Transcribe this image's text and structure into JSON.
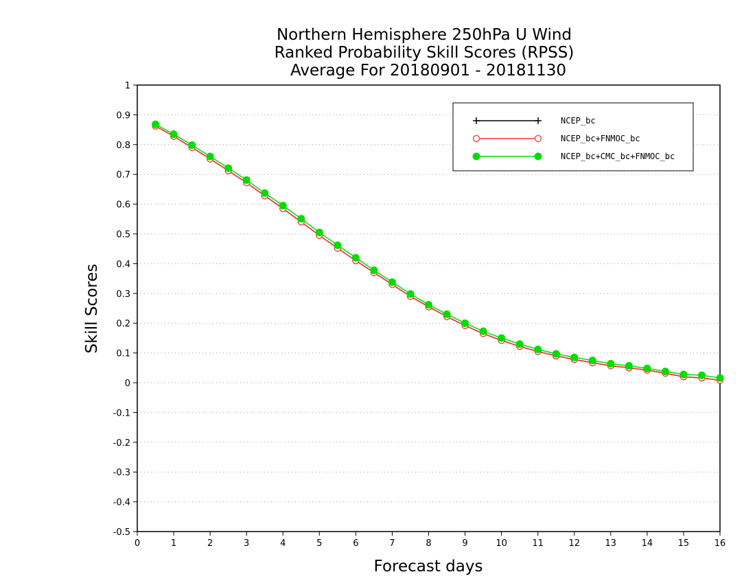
{
  "chart_data": {
    "type": "line",
    "title": [
      "Northern Hemisphere 250hPa U Wind",
      "Ranked Probability Skill Scores (RPSS)",
      "Average For 20180901 - 20181130"
    ],
    "xlabel": "Forecast days",
    "ylabel": "Skill Scores",
    "xlim": [
      0,
      16
    ],
    "ylim": [
      -0.5,
      1
    ],
    "x_ticks": [
      "0",
      "1",
      "2",
      "3",
      "4",
      "5",
      "6",
      "7",
      "8",
      "9",
      "10",
      "11",
      "12",
      "13",
      "14",
      "15",
      "16"
    ],
    "y_ticks": [
      "1",
      "0.9",
      "0.8",
      "0.7",
      "0.6",
      "0.5",
      "0.4",
      "0.3",
      "0.2",
      "0.1",
      "0",
      "-0.1",
      "-0.2",
      "-0.3",
      "-0.4",
      "-0.5"
    ],
    "grid": "horizontal dotted",
    "legend_position": "top-right",
    "x": [
      0.5,
      1,
      1.5,
      2,
      2.5,
      3,
      3.5,
      4,
      4.5,
      5,
      5.5,
      6,
      6.5,
      7,
      7.5,
      8,
      8.5,
      9,
      9.5,
      10,
      10.5,
      11,
      11.5,
      12,
      12.5,
      13,
      13.5,
      14,
      14.5,
      15,
      15.5,
      16
    ],
    "series": [
      {
        "name": "NCEP_bc",
        "color": "#000000",
        "marker": "plus",
        "values": [
          0.862,
          0.828,
          0.79,
          0.752,
          0.712,
          0.672,
          0.628,
          0.585,
          0.54,
          0.495,
          0.452,
          0.41,
          0.37,
          0.33,
          0.29,
          0.255,
          0.222,
          0.192,
          0.165,
          0.142,
          0.122,
          0.105,
          0.09,
          0.078,
          0.067,
          0.057,
          0.05,
          0.042,
          0.032,
          0.02,
          0.016,
          0.008
        ]
      },
      {
        "name": "NCEP_bc+FNMOC_bc",
        "color": "#ff3333",
        "marker": "open-circle",
        "values": [
          0.862,
          0.828,
          0.79,
          0.752,
          0.712,
          0.672,
          0.628,
          0.585,
          0.54,
          0.495,
          0.452,
          0.41,
          0.37,
          0.33,
          0.29,
          0.255,
          0.222,
          0.192,
          0.165,
          0.142,
          0.122,
          0.105,
          0.09,
          0.078,
          0.067,
          0.057,
          0.05,
          0.042,
          0.032,
          0.02,
          0.016,
          0.008
        ]
      },
      {
        "name": "NCEP_bc+CMC_bc+FNMOC_bc",
        "color": "#00dd00",
        "marker": "filled-circle",
        "values": [
          0.868,
          0.835,
          0.798,
          0.76,
          0.721,
          0.681,
          0.637,
          0.595,
          0.551,
          0.505,
          0.462,
          0.42,
          0.378,
          0.338,
          0.298,
          0.262,
          0.23,
          0.2,
          0.173,
          0.15,
          0.13,
          0.112,
          0.097,
          0.085,
          0.075,
          0.064,
          0.057,
          0.048,
          0.038,
          0.028,
          0.025,
          0.016
        ]
      }
    ]
  }
}
